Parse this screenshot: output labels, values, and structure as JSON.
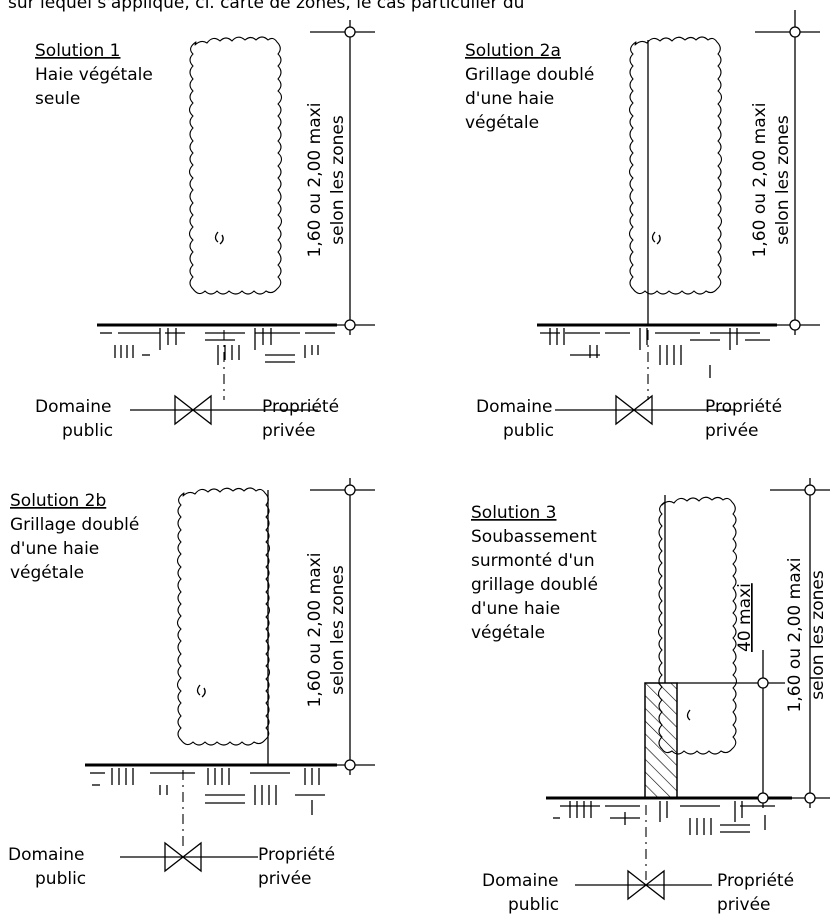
{
  "header_fragment": "sur lequel s'applique, cf. carte de zones, le cas particulier du",
  "diagrams": [
    {
      "title": "Solution 1",
      "description": [
        "Haie végétale",
        "seule"
      ],
      "height_label": [
        "1,60 ou 2,00 maxi",
        "selon les zones"
      ],
      "left_label": [
        "Domaine",
        "public"
      ],
      "right_label": [
        "Propriété",
        "privée"
      ]
    },
    {
      "title": "Solution 2a",
      "description": [
        "Grillage doublé",
        "d'une haie",
        "végétale"
      ],
      "height_label": [
        "1,60 ou 2,00 maxi",
        "selon les zones"
      ],
      "left_label": [
        "Domaine",
        "public"
      ],
      "right_label": [
        "Propriété",
        "privée"
      ]
    },
    {
      "title": "Solution 2b",
      "description": [
        "Grillage doublé",
        "d'une haie",
        "végétale"
      ],
      "height_label": [
        "1,60 ou 2,00 maxi",
        "selon les zones"
      ],
      "left_label": [
        "Domaine",
        "public"
      ],
      "right_label": [
        "Propriété",
        "privée"
      ]
    },
    {
      "title": "Solution 3",
      "description": [
        "Soubassement",
        "surmonté d'un",
        "grillage doublé",
        "d'une haie",
        "végétale"
      ],
      "height_label": [
        "1,60 ou 2,00 maxi",
        "selon les zones"
      ],
      "base_label": "40 maxi",
      "left_label": [
        "Domaine",
        "public"
      ],
      "right_label": [
        "Propriété",
        "privée"
      ]
    }
  ]
}
